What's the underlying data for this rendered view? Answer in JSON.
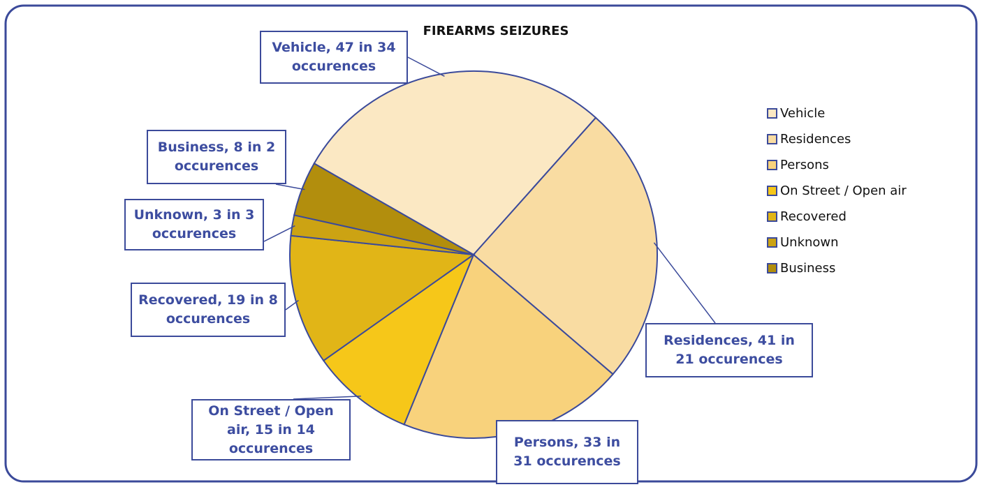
{
  "chart_data": {
    "type": "pie",
    "title": "FIREARMS SEIZURES",
    "categories": [
      "Vehicle",
      "Residences",
      "Persons",
      "On Street / Open air",
      "Recovered",
      "Unknown",
      "Business"
    ],
    "values": [
      47,
      41,
      33,
      15,
      19,
      3,
      8
    ],
    "value_labels": [
      "Vehicle, 47 in 34 occurences",
      "Residences, 41 in 21 occurences",
      "Persons, 33 in 31 occurences",
      "On Street / Open air, 15 in 14 occurences",
      "Recovered, 19 in 8 occurences",
      "Unknown, 3 in 3 occurences",
      "Business, 8 in 2 occurences"
    ],
    "colors": [
      "#fbe8c3",
      "#f9dca2",
      "#f8d27c",
      "#f6c719",
      "#e1b517",
      "#cca313",
      "#b28e0d"
    ],
    "legend": "right"
  }
}
